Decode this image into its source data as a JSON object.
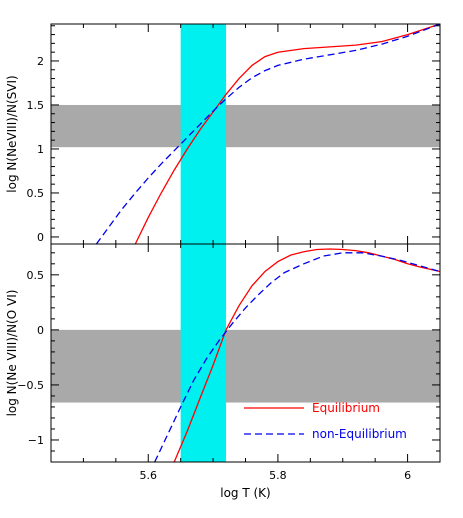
{
  "chart_data": [
    {
      "type": "line",
      "panel": "top",
      "xlabel": "",
      "ylabel": "log N(NeVIII)/N(SVI)",
      "xlim": [
        5.45,
        6.05
      ],
      "ylim": [
        -0.08,
        2.42
      ],
      "yticks": [
        0,
        0.5,
        1,
        1.5,
        2
      ],
      "ytick_labels": [
        "0",
        "0.5",
        "1",
        "1.5",
        "2"
      ],
      "shaded_band_y": [
        1.02,
        1.5
      ],
      "series": [
        {
          "name": "Equilibrium",
          "style": "solid",
          "color": "#ff0000",
          "x": [
            5.58,
            5.6,
            5.62,
            5.64,
            5.66,
            5.68,
            5.7,
            5.72,
            5.74,
            5.76,
            5.78,
            5.8,
            5.84,
            5.88,
            5.92,
            5.96,
            6.0,
            6.05
          ],
          "y": [
            -0.08,
            0.22,
            0.5,
            0.76,
            1.0,
            1.22,
            1.42,
            1.62,
            1.8,
            1.95,
            2.05,
            2.1,
            2.14,
            2.16,
            2.18,
            2.22,
            2.3,
            2.42
          ]
        },
        {
          "name": "non-Equilibrium",
          "style": "dashed",
          "color": "#0000ee",
          "x": [
            5.52,
            5.54,
            5.56,
            5.58,
            5.6,
            5.62,
            5.64,
            5.66,
            5.68,
            5.7,
            5.72,
            5.74,
            5.76,
            5.78,
            5.8,
            5.84,
            5.88,
            5.92,
            5.96,
            6.0,
            6.05
          ],
          "y": [
            -0.08,
            0.12,
            0.32,
            0.5,
            0.67,
            0.83,
            0.98,
            1.13,
            1.28,
            1.43,
            1.57,
            1.7,
            1.81,
            1.89,
            1.95,
            2.02,
            2.07,
            2.12,
            2.19,
            2.28,
            2.42
          ]
        }
      ]
    },
    {
      "type": "line",
      "panel": "bottom",
      "xlabel": "log T (K)",
      "ylabel": "log N(Ne VIII)/N(O VI)",
      "xlim": [
        5.45,
        6.05
      ],
      "ylim": [
        -1.2,
        0.78
      ],
      "xticks": [
        5.6,
        5.8,
        6.0
      ],
      "xtick_labels": [
        "5.6",
        "5.8",
        "6"
      ],
      "yticks": [
        -1,
        -0.5,
        0,
        0.5
      ],
      "ytick_labels": [
        "−1",
        "−0.5",
        "0",
        "0.5"
      ],
      "shaded_band_y": [
        -0.66,
        0.0
      ],
      "series": [
        {
          "name": "Equilibrium",
          "style": "solid",
          "color": "#ff0000",
          "x": [
            5.64,
            5.66,
            5.68,
            5.7,
            5.72,
            5.74,
            5.76,
            5.78,
            5.8,
            5.82,
            5.84,
            5.86,
            5.88,
            5.9,
            5.92,
            5.94,
            5.96,
            5.98,
            6.0,
            6.02,
            6.05
          ],
          "y": [
            -1.2,
            -0.92,
            -0.62,
            -0.32,
            0.0,
            0.22,
            0.4,
            0.53,
            0.62,
            0.68,
            0.71,
            0.73,
            0.735,
            0.73,
            0.72,
            0.7,
            0.67,
            0.64,
            0.6,
            0.57,
            0.53
          ]
        },
        {
          "name": "non-Equilibrium",
          "style": "dashed",
          "color": "#0000ee",
          "x": [
            5.61,
            5.63,
            5.65,
            5.67,
            5.69,
            5.71,
            5.73,
            5.75,
            5.77,
            5.79,
            5.81,
            5.84,
            5.87,
            5.9,
            5.93,
            5.96,
            5.99,
            6.02,
            6.05
          ],
          "y": [
            -1.2,
            -0.95,
            -0.7,
            -0.46,
            -0.26,
            -0.09,
            0.06,
            0.2,
            0.32,
            0.43,
            0.52,
            0.6,
            0.67,
            0.7,
            0.7,
            0.67,
            0.63,
            0.58,
            0.53
          ]
        }
      ]
    }
  ],
  "highlight_band_x": [
    5.65,
    5.72
  ],
  "colors": {
    "band_gray": "#a9a9a9",
    "highlight_cyan": "#00f0f0",
    "equilibrium": "#ff0000",
    "non_equilibrium": "#0000ee"
  },
  "legend": {
    "placement": "bottom-right of lower panel",
    "entries": [
      {
        "label": "Equilibrium",
        "style": "solid",
        "color": "#ff0000"
      },
      {
        "label": "non-Equilibrium",
        "style": "dashed",
        "color": "#0000ee"
      }
    ]
  }
}
